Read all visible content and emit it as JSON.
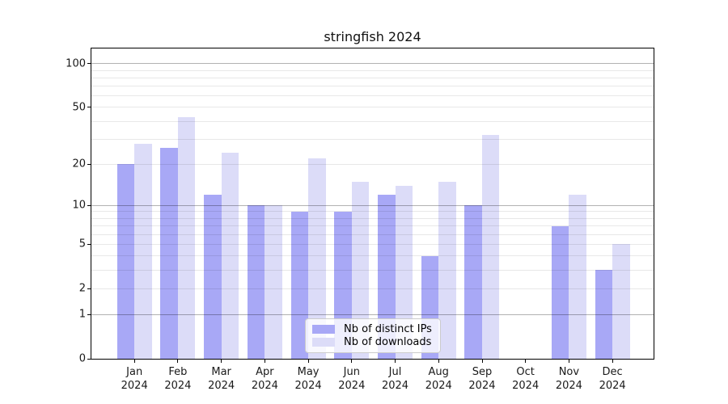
{
  "title": "stringfish 2024",
  "colors": {
    "distinct_ips_bar": "#a8a8f6",
    "downloads_bar": "#dcdcf8",
    "grid_major": "rgba(0,0,0,0.30)",
    "grid_minor": "rgba(0,0,0,0.09)",
    "axis": "#000000",
    "text": "#1a1a1a",
    "legend_border": "#cccccc"
  },
  "legend": {
    "items": [
      {
        "label": "Nb of distinct IPs",
        "color": "#a8a8f6"
      },
      {
        "label": "Nb of downloads",
        "color": "#dcdcf8"
      }
    ]
  },
  "chart_data": {
    "type": "bar",
    "title": "stringfish 2024",
    "categories": [
      "Jan 2024",
      "Feb 2024",
      "Mar 2024",
      "Apr 2024",
      "May 2024",
      "Jun 2024",
      "Jul 2024",
      "Aug 2024",
      "Sep 2024",
      "Oct 2024",
      "Nov 2024",
      "Dec 2024"
    ],
    "series": [
      {
        "name": "Nb of distinct IPs",
        "color": "#a8a8f6",
        "values": [
          20,
          26,
          12,
          10,
          9,
          9,
          12,
          4,
          10,
          0,
          7,
          3
        ]
      },
      {
        "name": "Nb of downloads",
        "color": "#dcdcf8",
        "values": [
          28,
          43,
          24,
          10,
          22,
          15,
          14,
          15,
          32,
          0,
          12,
          5
        ]
      }
    ],
    "xlabel": "",
    "ylabel": "",
    "yscale": "log1p",
    "ylim": [
      0,
      127
    ],
    "yticks": [
      0,
      1,
      2,
      5,
      10,
      20,
      50,
      100
    ],
    "gridlines_major": [
      1,
      10,
      100
    ],
    "gridlines_minor": [
      2,
      3,
      4,
      5,
      6,
      7,
      8,
      9,
      20,
      30,
      40,
      50,
      60,
      70,
      80,
      90
    ],
    "grid": true,
    "legend_position": "lower center"
  }
}
